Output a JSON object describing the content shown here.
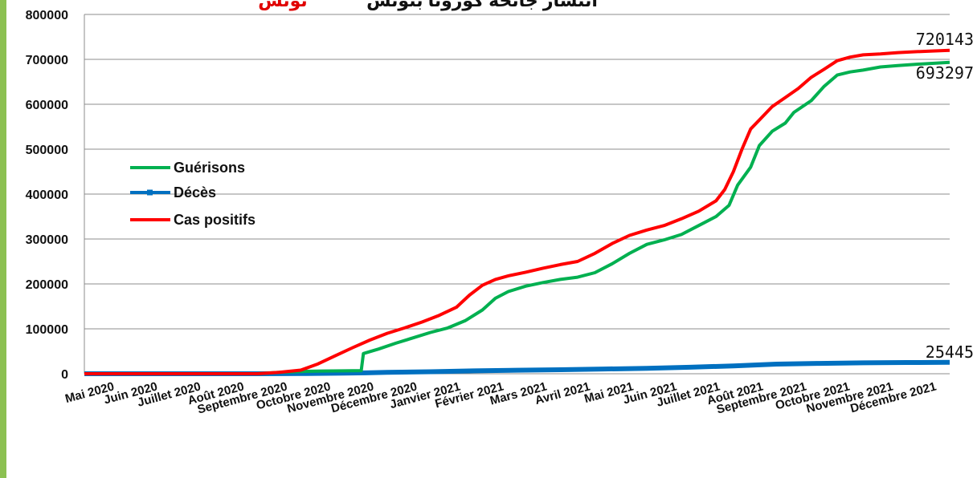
{
  "chart_data": {
    "type": "line",
    "title_text": "انتشار جائحة كورونا بتونس",
    "title_highlight": "تونس",
    "y_ticks": [
      "800000",
      "700000",
      "600000",
      "500000",
      "400000",
      "300000",
      "200000",
      "100000",
      "0"
    ],
    "ylim": [
      0,
      800000
    ],
    "grid": true,
    "legend_position": "left",
    "categories": [
      "Mai 2020",
      "Juin 2020",
      "Juillet 2020",
      "Août 2020",
      "Septembre 2020",
      "Octobre 2020",
      "Novembre 2020",
      "Décembre 2020",
      "Janvier 2021",
      "Février 2021",
      "Mars 2021",
      "Avril 2021",
      "Mai 2021",
      "Juin 2021",
      "Juillet 2021",
      "Août 2021",
      "Septembre 2021",
      "Octobre 2021",
      "Novembre 2021",
      "Décembre 2021"
    ],
    "x_range": [
      0,
      20
    ],
    "series": [
      {
        "name": "Guérisons",
        "color": "#00b050",
        "end_label": "693297",
        "points": [
          [
            0,
            0
          ],
          [
            4.0,
            0
          ],
          [
            4.5,
            3000
          ],
          [
            5.0,
            5000
          ],
          [
            5.5,
            6000
          ],
          [
            6.0,
            6500
          ],
          [
            6.4,
            7000
          ],
          [
            6.45,
            45000
          ],
          [
            6.8,
            55000
          ],
          [
            7.2,
            68000
          ],
          [
            7.6,
            80000
          ],
          [
            8.0,
            92000
          ],
          [
            8.4,
            102000
          ],
          [
            8.8,
            118000
          ],
          [
            9.2,
            142000
          ],
          [
            9.5,
            168000
          ],
          [
            9.8,
            183000
          ],
          [
            10.2,
            195000
          ],
          [
            10.6,
            203000
          ],
          [
            11.0,
            210000
          ],
          [
            11.4,
            215000
          ],
          [
            11.8,
            225000
          ],
          [
            12.2,
            245000
          ],
          [
            12.6,
            268000
          ],
          [
            13.0,
            288000
          ],
          [
            13.4,
            298000
          ],
          [
            13.8,
            310000
          ],
          [
            14.2,
            330000
          ],
          [
            14.6,
            350000
          ],
          [
            14.9,
            375000
          ],
          [
            15.1,
            420000
          ],
          [
            15.4,
            460000
          ],
          [
            15.6,
            508000
          ],
          [
            15.9,
            540000
          ],
          [
            16.2,
            558000
          ],
          [
            16.4,
            582000
          ],
          [
            16.8,
            608000
          ],
          [
            17.1,
            640000
          ],
          [
            17.4,
            665000
          ],
          [
            17.7,
            672000
          ],
          [
            18.0,
            676000
          ],
          [
            18.4,
            683000
          ],
          [
            18.8,
            686000
          ],
          [
            19.2,
            689000
          ],
          [
            19.6,
            691000
          ],
          [
            20.0,
            693297
          ]
        ]
      },
      {
        "name": "Décès",
        "color": "#0070c0",
        "end_label": "25445",
        "points": [
          [
            0,
            0
          ],
          [
            4.0,
            0
          ],
          [
            5.0,
            300
          ],
          [
            6.0,
            1200
          ],
          [
            6.5,
            2000
          ],
          [
            7.0,
            3000
          ],
          [
            8.0,
            4500
          ],
          [
            9.0,
            6500
          ],
          [
            10.0,
            7800
          ],
          [
            11.0,
            9000
          ],
          [
            12.0,
            10500
          ],
          [
            13.0,
            12000
          ],
          [
            14.0,
            14500
          ],
          [
            15.0,
            17500
          ],
          [
            15.5,
            19500
          ],
          [
            16.0,
            21500
          ],
          [
            17.0,
            23000
          ],
          [
            18.0,
            24200
          ],
          [
            19.0,
            25000
          ],
          [
            20.0,
            25445
          ]
        ]
      },
      {
        "name": "Cas positifs",
        "color": "#ff0000",
        "end_label": "720143",
        "points": [
          [
            0,
            0
          ],
          [
            4.0,
            0
          ],
          [
            4.5,
            3000
          ],
          [
            5.0,
            8000
          ],
          [
            5.4,
            22000
          ],
          [
            5.8,
            40000
          ],
          [
            6.2,
            58000
          ],
          [
            6.6,
            75000
          ],
          [
            7.0,
            90000
          ],
          [
            7.4,
            102000
          ],
          [
            7.8,
            115000
          ],
          [
            8.2,
            130000
          ],
          [
            8.6,
            148000
          ],
          [
            8.9,
            175000
          ],
          [
            9.2,
            197000
          ],
          [
            9.5,
            210000
          ],
          [
            9.8,
            218000
          ],
          [
            10.2,
            226000
          ],
          [
            10.6,
            235000
          ],
          [
            11.0,
            243000
          ],
          [
            11.4,
            250000
          ],
          [
            11.8,
            268000
          ],
          [
            12.2,
            290000
          ],
          [
            12.6,
            308000
          ],
          [
            13.0,
            320000
          ],
          [
            13.4,
            330000
          ],
          [
            13.8,
            345000
          ],
          [
            14.2,
            362000
          ],
          [
            14.6,
            385000
          ],
          [
            14.8,
            410000
          ],
          [
            15.0,
            450000
          ],
          [
            15.2,
            500000
          ],
          [
            15.4,
            545000
          ],
          [
            15.6,
            565000
          ],
          [
            15.9,
            595000
          ],
          [
            16.2,
            615000
          ],
          [
            16.5,
            635000
          ],
          [
            16.8,
            660000
          ],
          [
            17.1,
            678000
          ],
          [
            17.4,
            697000
          ],
          [
            17.7,
            705000
          ],
          [
            18.0,
            710000
          ],
          [
            18.4,
            712000
          ],
          [
            18.8,
            715000
          ],
          [
            19.2,
            717000
          ],
          [
            19.6,
            718500
          ],
          [
            20.0,
            720143
          ]
        ]
      }
    ]
  }
}
